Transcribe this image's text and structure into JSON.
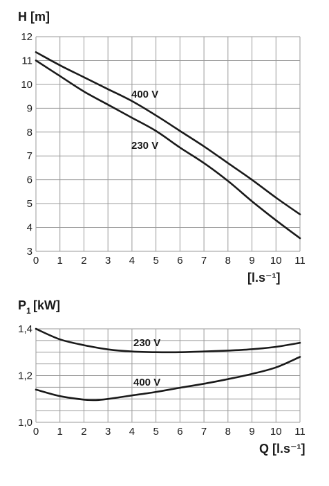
{
  "chart_data": [
    {
      "type": "line",
      "ylabel": "H [m]",
      "xlabel": "[l.s⁻¹]",
      "xlim": [
        0,
        11
      ],
      "ylim": [
        3,
        12
      ],
      "x_ticks": [
        0,
        1,
        2,
        3,
        4,
        5,
        6,
        7,
        8,
        9,
        10,
        11
      ],
      "y_ticks": [
        3,
        4,
        5,
        6,
        7,
        8,
        9,
        10,
        11,
        12
      ],
      "grid": true,
      "series": [
        {
          "name": "400 V",
          "x": [
            0,
            1,
            2,
            3,
            4,
            5,
            6,
            7,
            8,
            9,
            10,
            11
          ],
          "y": [
            11.35,
            10.8,
            10.3,
            9.8,
            9.3,
            8.7,
            8.05,
            7.4,
            6.7,
            6.0,
            5.25,
            4.55
          ]
        },
        {
          "name": "230 V",
          "x": [
            0,
            1,
            2,
            3,
            4,
            5,
            6,
            7,
            8,
            9,
            10,
            11
          ],
          "y": [
            11.0,
            10.35,
            9.7,
            9.15,
            8.6,
            8.05,
            7.35,
            6.7,
            5.95,
            5.1,
            4.3,
            3.55
          ]
        }
      ]
    },
    {
      "type": "line",
      "ylabel": "P1 [kW]",
      "xlabel": "Q [l.s⁻¹]",
      "xlim": [
        0,
        11
      ],
      "ylim": [
        1.0,
        1.4
      ],
      "x_ticks": [
        0,
        1,
        2,
        3,
        4,
        5,
        6,
        7,
        8,
        9,
        10,
        11
      ],
      "y_ticks": [
        "1,0",
        "1,2",
        "1,4"
      ],
      "y_tick_values": [
        1.0,
        1.2,
        1.4
      ],
      "grid": true,
      "series": [
        {
          "name": "230 V",
          "x": [
            0,
            1,
            2,
            3,
            4,
            5,
            6,
            7,
            8,
            9,
            10,
            11
          ],
          "y": [
            1.4,
            1.355,
            1.33,
            1.312,
            1.303,
            1.3,
            1.3,
            1.303,
            1.307,
            1.313,
            1.323,
            1.34
          ]
        },
        {
          "name": "400 V",
          "x": [
            0,
            1,
            2,
            2.5,
            3,
            4,
            5,
            6,
            7,
            8,
            9,
            10,
            11
          ],
          "y": [
            1.14,
            1.112,
            1.097,
            1.095,
            1.1,
            1.115,
            1.13,
            1.148,
            1.165,
            1.185,
            1.207,
            1.235,
            1.28
          ]
        }
      ]
    }
  ]
}
